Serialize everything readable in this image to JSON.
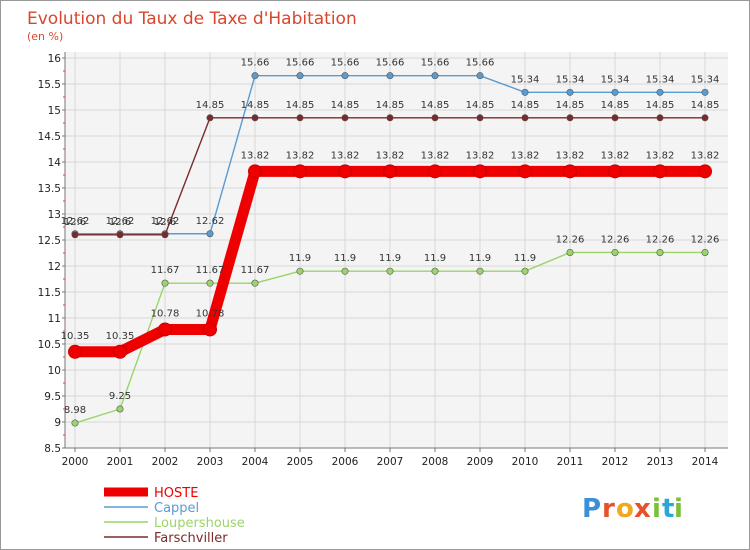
{
  "chart_data": {
    "type": "line",
    "title": "Evolution du Taux de Taxe d'Habitation",
    "subtitle": "(en %)",
    "xlabel": "",
    "ylabel": "",
    "x": [
      "2000",
      "2001",
      "2002",
      "2003",
      "2004",
      "2005",
      "2006",
      "2007",
      "2008",
      "2009",
      "2010",
      "2011",
      "2012",
      "2013",
      "2014"
    ],
    "ylim": [
      8.5,
      16
    ],
    "yticks": [
      "8.5",
      "9",
      "9.5",
      "10",
      "10.5",
      "11",
      "11.5",
      "12",
      "12.5",
      "13",
      "13.5",
      "14",
      "14.5",
      "15",
      "15.5",
      "16"
    ],
    "grid": true,
    "legend_position": "bottom-left",
    "series": [
      {
        "name": "HOSTE",
        "color": "#ee0000",
        "values": [
          10.35,
          10.35,
          10.78,
          10.78,
          13.82,
          13.82,
          13.82,
          13.82,
          13.82,
          13.82,
          13.82,
          13.82,
          13.82,
          13.82,
          13.82
        ],
        "labels": [
          "10.35",
          "10.35",
          "10.78",
          "10.78",
          "13.82",
          "13.82",
          "13.82",
          "13.82",
          "13.82",
          "13.82",
          "13.82",
          "13.82",
          "13.82",
          "13.82",
          "13.82"
        ]
      },
      {
        "name": "Cappel",
        "color": "#5a9bd0",
        "values": [
          12.62,
          12.62,
          12.62,
          12.62,
          15.66,
          15.66,
          15.66,
          15.66,
          15.66,
          15.66,
          15.34,
          15.34,
          15.34,
          15.34,
          15.34
        ],
        "labels": [
          "12.62",
          "12.62",
          "12.62",
          "12.62",
          "15.66",
          "15.66",
          "15.66",
          "15.66",
          "15.66",
          "15.66",
          "15.34",
          "15.34",
          "15.34",
          "15.34",
          "15.34"
        ]
      },
      {
        "name": "Loupershouse",
        "color": "#9bd46a",
        "values": [
          8.98,
          9.25,
          11.67,
          11.67,
          11.67,
          11.9,
          11.9,
          11.9,
          11.9,
          11.9,
          11.9,
          12.26,
          12.26,
          12.26,
          12.26
        ],
        "labels": [
          "8.98",
          "9.25",
          "11.67",
          "11.67",
          "11.67",
          "11.9",
          "11.9",
          "11.9",
          "11.9",
          "11.9",
          "11.9",
          "12.26",
          "12.26",
          "12.26",
          "12.26"
        ]
      },
      {
        "name": "Farschviller",
        "color": "#7a2a2a",
        "values": [
          12.6,
          12.6,
          12.6,
          14.85,
          14.85,
          14.85,
          14.85,
          14.85,
          14.85,
          14.85,
          14.85,
          14.85,
          14.85,
          14.85,
          14.85
        ],
        "labels": [
          "12.6",
          "12.6",
          "12.6",
          "14.85",
          "14.85",
          "14.85",
          "14.85",
          "14.85",
          "14.85",
          "14.85",
          "14.85",
          "14.85",
          "14.85",
          "14.85",
          "14.85"
        ]
      }
    ]
  },
  "logo": {
    "letters": [
      "P",
      "r",
      "o",
      "x",
      "i",
      "t",
      "i"
    ],
    "colors": [
      "#3a8fd6",
      "#e8502a",
      "#f2a81d",
      "#e8502a",
      "#7cbf3a",
      "#2aa7d6",
      "#7cbf3a"
    ]
  },
  "colors": {
    "background": "#ffffff",
    "plot_background": "#f4f4f4",
    "grid": "#d8d8d8",
    "title": "#d9462b",
    "border": "#999999"
  }
}
